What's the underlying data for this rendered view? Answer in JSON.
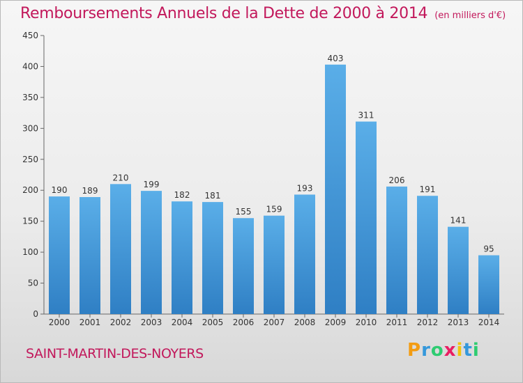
{
  "title": "Remboursements Annuels de la Dette de 2000 à 2014",
  "unit": "(en milliers d'€)",
  "commune": "SAINT-MARTIN-DES-NOYERS",
  "logo": {
    "letters": [
      {
        "char": "P",
        "color": "#f39c12"
      },
      {
        "char": "r",
        "color": "#3498db"
      },
      {
        "char": "o",
        "color": "#2ecc71"
      },
      {
        "char": "x",
        "color": "#e91e63"
      },
      {
        "char": "i",
        "color": "#f1c40f"
      },
      {
        "char": "t",
        "color": "#3498db"
      },
      {
        "char": "i",
        "color": "#2ecc71"
      }
    ]
  },
  "colors": {
    "bar_top": "#5aaee8",
    "bar_bottom": "#2f7fc4",
    "title": "#c2185b"
  },
  "chart_data": {
    "type": "bar",
    "title": "Remboursements Annuels de la Dette de 2000 à 2014",
    "xlabel": "",
    "ylabel": "",
    "categories": [
      "2000",
      "2001",
      "2002",
      "2003",
      "2004",
      "2005",
      "2006",
      "2007",
      "2008",
      "2009",
      "2010",
      "2011",
      "2012",
      "2013",
      "2014"
    ],
    "values": [
      190,
      189,
      210,
      199,
      182,
      181,
      155,
      159,
      193,
      403,
      311,
      206,
      191,
      141,
      95
    ],
    "ylim": [
      0,
      450
    ],
    "yticks": [
      0,
      50,
      100,
      150,
      200,
      250,
      300,
      350,
      400,
      450
    ],
    "grid": false,
    "legend": "none"
  }
}
